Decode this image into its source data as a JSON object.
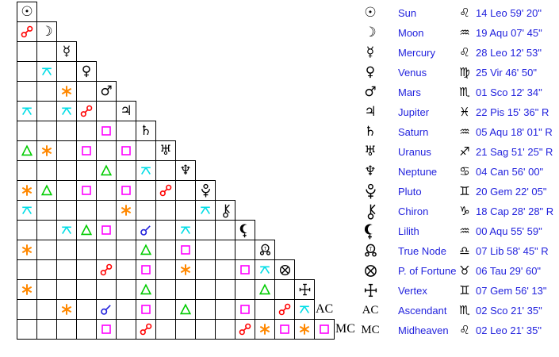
{
  "palette": {
    "background": "#ffffff",
    "grid_line": "#000000",
    "glyph_black": "#000000",
    "text_blue": "#2222dd"
  },
  "aspects": {
    "conjunction": {
      "color": "#2222dd"
    },
    "opposition": {
      "color": "#ff0000"
    },
    "square": {
      "color": "#ff00ff"
    },
    "trine": {
      "color": "#00cc00"
    },
    "sextile": {
      "color": "#ff8800"
    },
    "quincunx": {
      "color": "#00dde6"
    }
  },
  "glyph_chars": {
    "sun": "☉",
    "moon": "☽",
    "mercury": "☿",
    "venus": "♀",
    "mars": "♂",
    "jupiter": "♃",
    "saturn": "♄",
    "uranus": "♅",
    "neptune": "♆",
    "ac": "AC",
    "mc": "MC"
  },
  "sign_chars": {
    "Leo": "♌",
    "Aqu": "♒",
    "Vir": "♍",
    "Sco": "♏",
    "Pis": "♓",
    "Sag": "♐",
    "Can": "♋",
    "Gem": "♊",
    "Cap": "♑",
    "Lib": "♎",
    "Tau": "♉"
  },
  "aspect_grid": {
    "rows": [
      {
        "planet": "Sun",
        "glyph": "sun",
        "aspects": {}
      },
      {
        "planet": "Moon",
        "glyph": "moon",
        "aspects": {
          "0": "opposition"
        }
      },
      {
        "planet": "Mercury",
        "glyph": "mercury",
        "aspects": {}
      },
      {
        "planet": "Venus",
        "glyph": "venus",
        "aspects": {
          "1": "quincunx"
        }
      },
      {
        "planet": "Mars",
        "glyph": "mars",
        "aspects": {
          "2": "sextile"
        }
      },
      {
        "planet": "Jupiter",
        "glyph": "jupiter",
        "aspects": {
          "0": "quincunx",
          "2": "quincunx",
          "3": "opposition"
        }
      },
      {
        "planet": "Saturn",
        "glyph": "saturn",
        "aspects": {
          "4": "square"
        }
      },
      {
        "planet": "Uranus",
        "glyph": "uranus",
        "aspects": {
          "0": "trine",
          "1": "sextile",
          "3": "square",
          "5": "square"
        }
      },
      {
        "planet": "Neptune",
        "glyph": "neptune",
        "aspects": {
          "4": "trine",
          "6": "quincunx"
        }
      },
      {
        "planet": "Pluto",
        "glyph": "pluto",
        "aspects": {
          "0": "sextile",
          "1": "trine",
          "3": "square",
          "5": "square",
          "7": "opposition"
        }
      },
      {
        "planet": "Chiron",
        "glyph": "chiron",
        "aspects": {
          "0": "quincunx",
          "5": "sextile",
          "9": "quincunx"
        }
      },
      {
        "planet": "Lilith",
        "glyph": "lilith",
        "aspects": {
          "2": "quincunx",
          "3": "trine",
          "4": "square",
          "6": "conjunction",
          "8": "quincunx"
        }
      },
      {
        "planet": "True Node",
        "glyph": "node",
        "aspects": {
          "0": "sextile",
          "6": "trine",
          "8": "square"
        }
      },
      {
        "planet": "P. of Fortune",
        "glyph": "fortune",
        "aspects": {
          "4": "opposition",
          "6": "square",
          "8": "sextile",
          "11": "square",
          "12": "quincunx"
        }
      },
      {
        "planet": "Vertex",
        "glyph": "vertex",
        "aspects": {
          "0": "sextile",
          "6": "trine",
          "12": "trine"
        }
      },
      {
        "planet": "Ascendant",
        "glyph": "ac",
        "aspects": {
          "2": "sextile",
          "4": "conjunction",
          "6": "square",
          "8": "trine",
          "11": "square",
          "13": "opposition",
          "14": "quincunx"
        }
      },
      {
        "planet": "Midheaven",
        "glyph": "mc",
        "aspects": {
          "4": "square",
          "6": "opposition",
          "11": "opposition",
          "12": "sextile",
          "13": "square",
          "14": "sextile",
          "15": "square"
        }
      }
    ]
  },
  "positions_table": {
    "rows": [
      {
        "planet": "Sun",
        "glyph": "sun",
        "sign": "Leo",
        "position": "14 Leo 59' 20\""
      },
      {
        "planet": "Moon",
        "glyph": "moon",
        "sign": "Aqu",
        "position": "19 Aqu 07' 45\""
      },
      {
        "planet": "Mercury",
        "glyph": "mercury",
        "sign": "Leo",
        "position": "28 Leo 12' 53\""
      },
      {
        "planet": "Venus",
        "glyph": "venus",
        "sign": "Vir",
        "position": "25 Vir 46' 50\""
      },
      {
        "planet": "Mars",
        "glyph": "mars",
        "sign": "Sco",
        "position": "01 Sco 12' 34\""
      },
      {
        "planet": "Jupiter",
        "glyph": "jupiter",
        "sign": "Pis",
        "position": "22 Pis 15' 36\" R"
      },
      {
        "planet": "Saturn",
        "glyph": "saturn",
        "sign": "Aqu",
        "position": "05 Aqu 18' 01\" R"
      },
      {
        "planet": "Uranus",
        "glyph": "uranus",
        "sign": "Sag",
        "position": "21 Sag 51' 25\" R"
      },
      {
        "planet": "Neptune",
        "glyph": "neptune",
        "sign": "Can",
        "position": "04 Can 56' 00\""
      },
      {
        "planet": "Pluto",
        "glyph": "pluto",
        "sign": "Gem",
        "position": "20 Gem 22' 05\""
      },
      {
        "planet": "Chiron",
        "glyph": "chiron",
        "sign": "Cap",
        "position": "18 Cap 28' 28\" R"
      },
      {
        "planet": "Lilith",
        "glyph": "lilith",
        "sign": "Aqu",
        "position": "00 Aqu 55' 59\""
      },
      {
        "planet": "True Node",
        "glyph": "node",
        "sign": "Lib",
        "position": "07 Lib 58' 45\" R"
      },
      {
        "planet": "P. of Fortune",
        "glyph": "fortune",
        "sign": "Tau",
        "position": "06 Tau 29' 60\""
      },
      {
        "planet": "Vertex",
        "glyph": "vertex",
        "sign": "Gem",
        "position": "07 Gem 56' 13\""
      },
      {
        "planet": "Ascendant",
        "glyph": "ac",
        "sign": "Sco",
        "position": "02 Sco 21' 35\""
      },
      {
        "planet": "Midheaven",
        "glyph": "mc",
        "sign": "Leo",
        "position": "02 Leo 21' 35\""
      }
    ]
  }
}
